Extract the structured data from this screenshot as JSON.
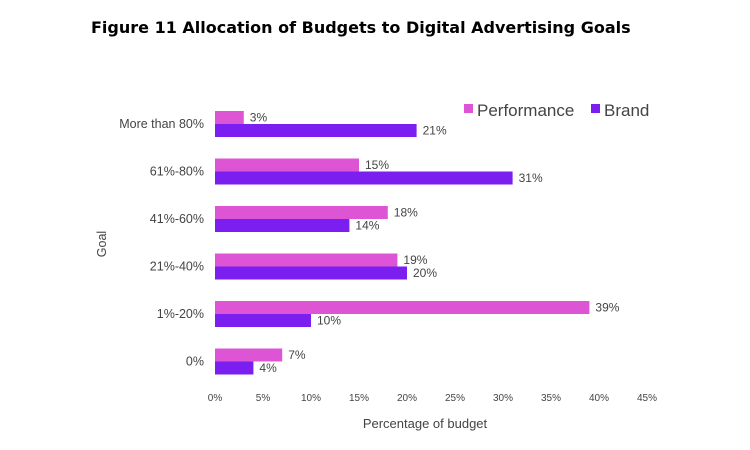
{
  "figure_title": "Figure 11 Allocation of Budgets to Digital Advertising Goals",
  "colors": {
    "performance": "#dd55d4",
    "brand": "#7a1ff0",
    "text": "#444444",
    "title": "#000000"
  },
  "chart_data": {
    "type": "bar",
    "orientation": "horizontal",
    "title": "Figure 11 Allocation of Budgets to Digital Advertising Goals",
    "xlabel": "Percentage of budget",
    "ylabel": "Goal",
    "categories": [
      "More than 80%",
      "61%-80%",
      "41%-60%",
      "21%-40%",
      "1%-20%",
      "0%"
    ],
    "series": [
      {
        "name": "Performance",
        "values": [
          3,
          15,
          18,
          19,
          39,
          7
        ],
        "labels": [
          "3%",
          "15%",
          "18%",
          "19%",
          "39%",
          "7%"
        ]
      },
      {
        "name": "Brand",
        "values": [
          21,
          31,
          14,
          20,
          10,
          4
        ],
        "labels": [
          "21%",
          "31%",
          "14%",
          "20%",
          "10%",
          "4%"
        ]
      }
    ],
    "xlim": [
      0,
      45
    ],
    "xticks": [
      0,
      5,
      10,
      15,
      20,
      25,
      30,
      35,
      40,
      45
    ],
    "xtick_labels": [
      "0%",
      "5%",
      "10%",
      "15%",
      "20%",
      "25%",
      "30%",
      "35%",
      "40%",
      "45%"
    ],
    "grid": false,
    "legend_position": "top-right"
  }
}
